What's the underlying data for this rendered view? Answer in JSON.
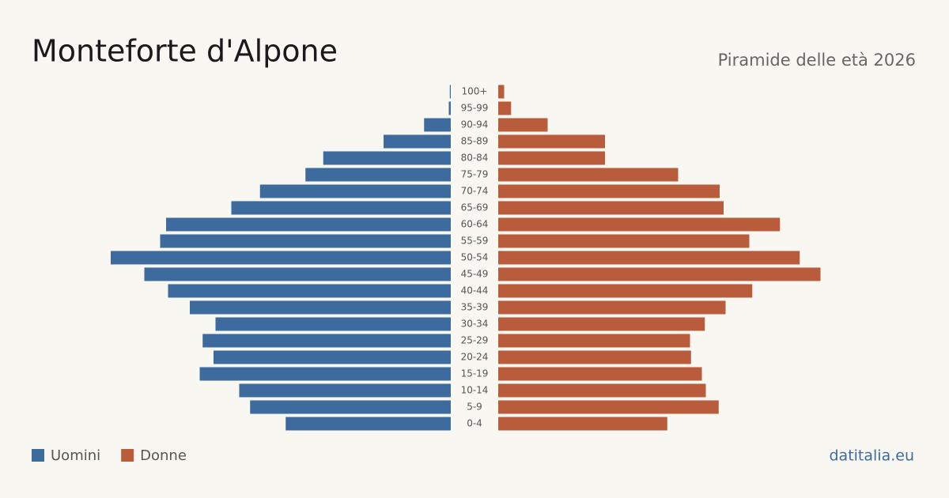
{
  "chart_data": {
    "type": "pyramid",
    "title": "Monteforte d'Alpone",
    "subtitle": "Piramide delle età 2026",
    "source": "datitalia.eu",
    "categories": [
      "100+",
      "95-99",
      "90-94",
      "85-89",
      "80-84",
      "75-79",
      "70-74",
      "65-69",
      "60-64",
      "55-59",
      "50-54",
      "45-49",
      "40-44",
      "35-39",
      "30-34",
      "25-29",
      "20-24",
      "15-19",
      "10-14",
      "5-9",
      "0-4"
    ],
    "series": [
      {
        "name": "Uomini",
        "color": "#3d6b9e",
        "values": [
          1,
          2,
          27,
          68,
          129,
          147,
          193,
          222,
          288,
          294,
          344,
          310,
          286,
          264,
          238,
          251,
          240,
          254,
          214,
          203,
          167
        ]
      },
      {
        "name": "Donne",
        "color": "#b85c3c",
        "values": [
          6,
          13,
          50,
          108,
          108,
          182,
          224,
          228,
          285,
          254,
          305,
          326,
          257,
          230,
          209,
          194,
          195,
          206,
          210,
          223,
          171
        ]
      }
    ]
  }
}
